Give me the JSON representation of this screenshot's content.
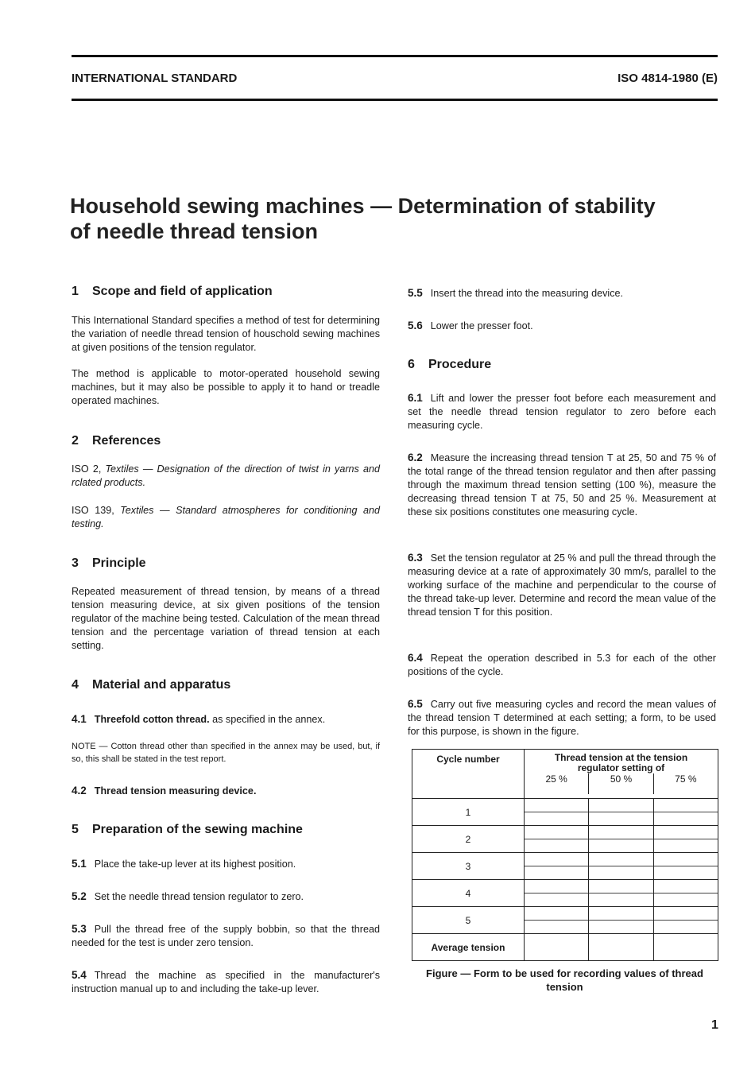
{
  "header": {
    "left": "INTERNATIONAL STANDARD",
    "right": "ISO 4814-1980 (E)"
  },
  "title": {
    "line1": "Household sewing machines — Determination of stability",
    "line2": "of needle thread tension"
  },
  "s1": {
    "num": "1",
    "title": "Scope and field of application",
    "p1": "This International Standard specifies a method of test for determining the variation of needle thread tension of houschold sewing machines at given positions of the tension regulator.",
    "p2": "The method is applicable to motor-operated household sewing machines, but it may also be possible to apply it to hand or treadle operated machines."
  },
  "s2": {
    "num": "2",
    "title": "References",
    "r1_prefix": "ISO 2, ",
    "r1_italic": "Textiles — Designation of the direction of twist in yarns and rclated products.",
    "r2_prefix": "ISO 139, ",
    "r2_italic": "Textiles — Standard atmospheres for conditioning and testing."
  },
  "s3": {
    "num": "3",
    "title": "Principle",
    "p1": "Repeated measurement of thread tension, by means of a thread tension measuring device, at six given positions of the tension regulator of the machine being tested. Calculation of the mean thread tension and the percentage variation of thread tension at each setting."
  },
  "s4": {
    "num": "4",
    "title": "Material and apparatus",
    "c41_num": "4.1",
    "c41_bold": "Threefold cotton thread.",
    "c41_text": " as specified in the annex.",
    "note": "NOTE — Cotton thread other than specified in the annex may be used, but, if so, this shall be stated in the test report.",
    "c42_num": "4.2",
    "c42_bold": "Thread tension measuring device."
  },
  "s5": {
    "num": "5",
    "title": "Preparation of the sewing machine",
    "clauses": [
      {
        "num": "5.1",
        "text": "Place the take-up lever at its highest position."
      },
      {
        "num": "5.2",
        "text": "Set the needle thread tension regulator to zero."
      },
      {
        "num": "5.3",
        "text": "Pull the thread free of the supply bobbin, so that the thread needed for the test is under zero tension."
      },
      {
        "num": "5.4",
        "text": "Thread the machine as specified in the manufacturer's instruction manual up to and including the take-up lever."
      },
      {
        "num": "5.5",
        "text": "Insert the thread into the measuring device."
      },
      {
        "num": "5.6",
        "text": "Lower the presser foot."
      }
    ]
  },
  "s6": {
    "num": "6",
    "title": "Procedure",
    "clauses": [
      {
        "num": "6.1",
        "text": "Lift and lower the presser foot before each measurement and set the needle thread tension regulator to zero before each measuring cycle."
      },
      {
        "num": "6.2",
        "text": "Measure the increasing thread tension T at 25, 50 and 75 % of the total range of the thread tension regulator and then after passing through the maximum thread tension setting (100 %), measure the decreasing thread tension T at 75, 50 and 25 %. Measurement at these six positions constitutes one measuring cycle."
      },
      {
        "num": "6.3",
        "text": "Set the tension regulator at 25 % and pull the thread through the measuring device at a rate of approximately 30 mm/s, parallel to the working surface of the machine and perpendicular to the course of the thread take-up lever. Determine and record the mean value of the thread tension T for this position."
      },
      {
        "num": "6.4",
        "text": "Repeat the operation described in 5.3 for each of the other positions of the cycle."
      },
      {
        "num": "6.5",
        "text": "Carry out five measuring cycles and record the mean values of the thread tension T determined at each setting; a form, to be used for this purpose, is shown in the figure."
      }
    ]
  },
  "table": {
    "col1_header": "Cycle number",
    "group_header": "Thread tension at the tension regulator setting of",
    "settings": [
      "25 %",
      "50 %",
      "75 %"
    ],
    "rows": [
      "1",
      "2",
      "3",
      "4",
      "5"
    ],
    "footer": "Average tension"
  },
  "figure_caption": "Figure — Form to be used for recording values of thread tension",
  "page_number": "1"
}
